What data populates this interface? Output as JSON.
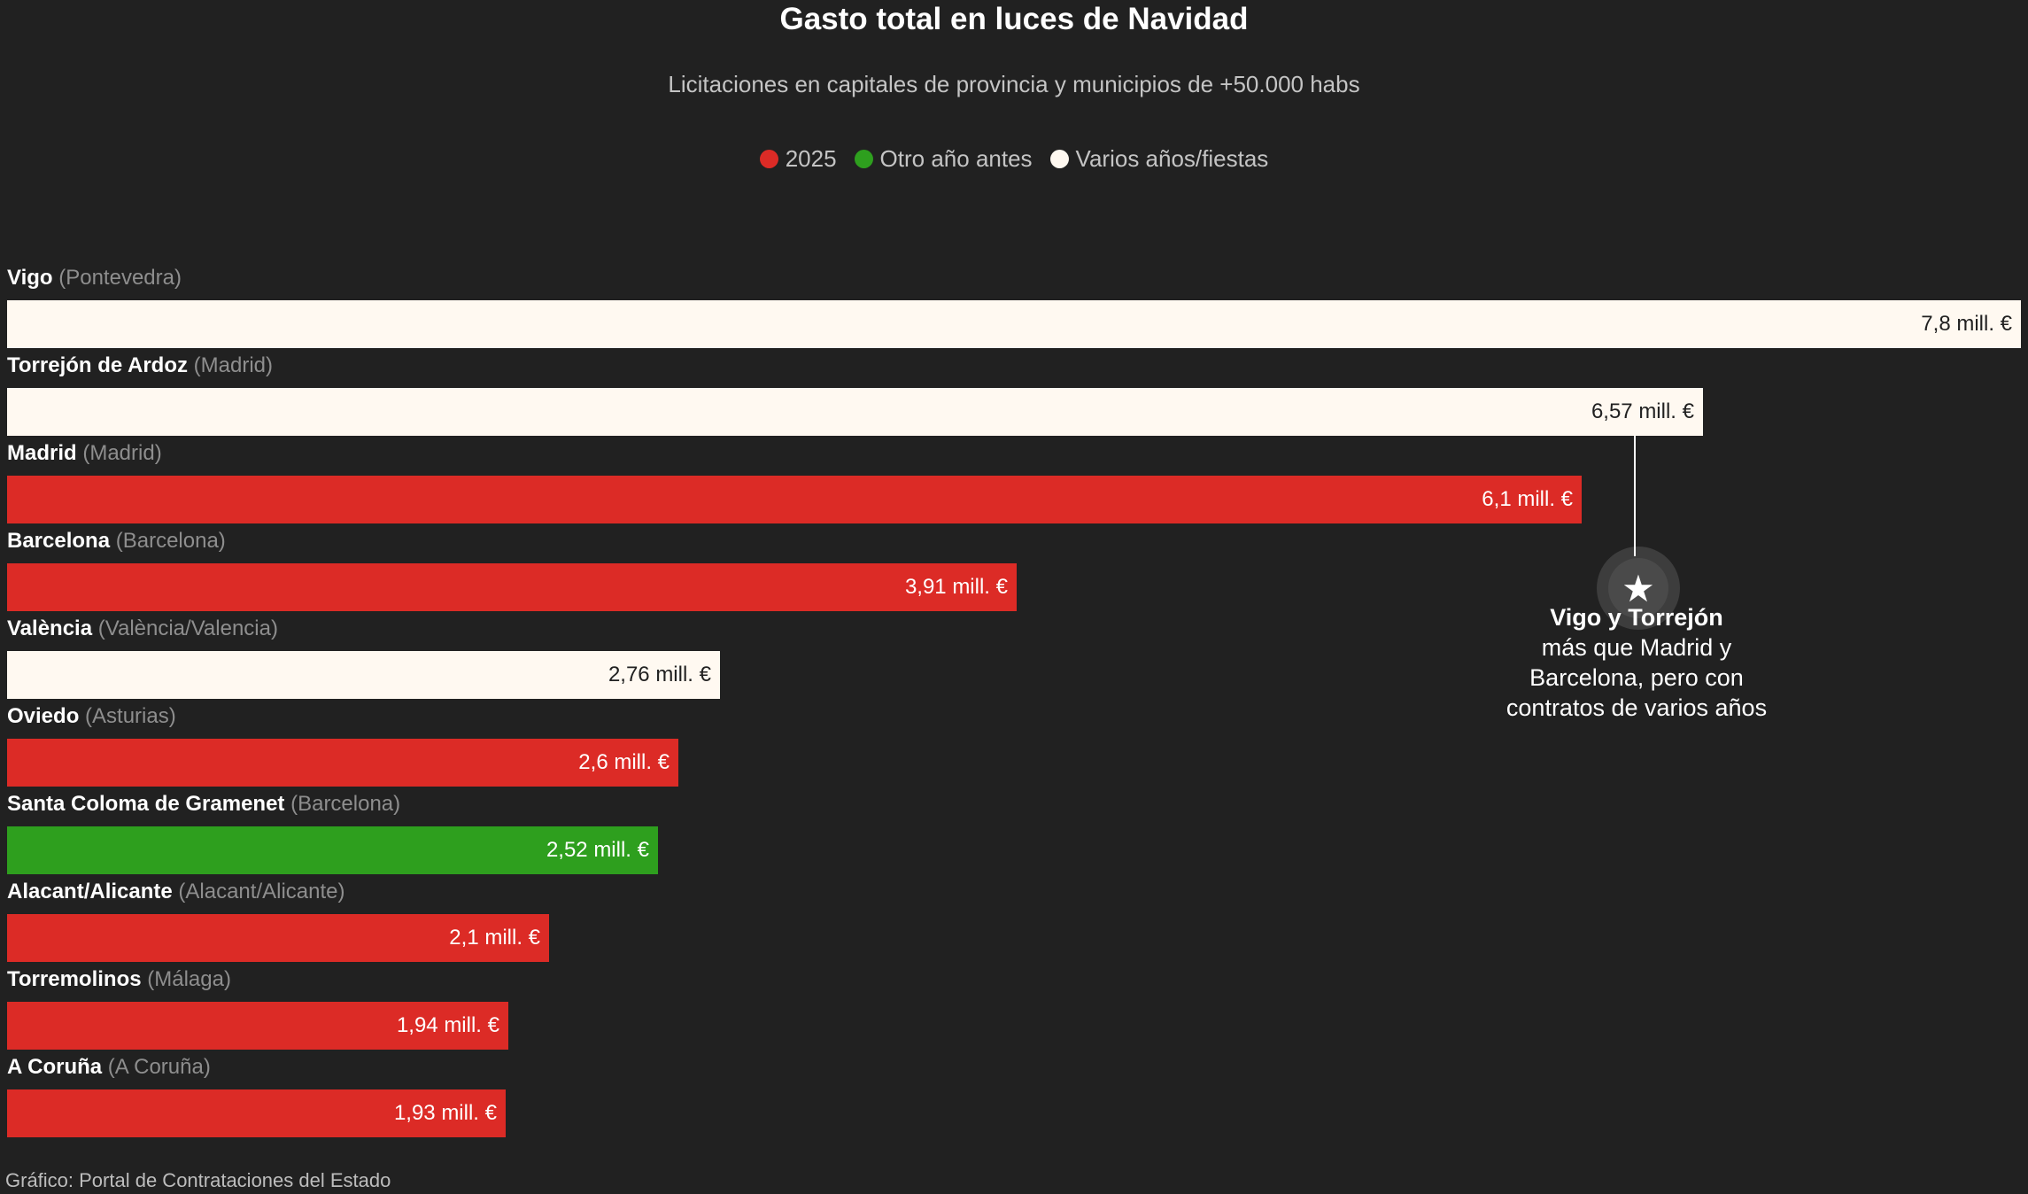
{
  "title": "Gasto total en luces de Navidad",
  "subtitle": "Licitaciones en capitales de provincia y municipios de +50.000 habs",
  "legend": [
    {
      "label": "2025",
      "color": "#dc2b26"
    },
    {
      "label": "Otro año antes",
      "color": "#2e9f1e"
    },
    {
      "label": "Varios años/fiestas",
      "color": "#fff9f1"
    }
  ],
  "annotation": {
    "icon": "star-icon",
    "bold": "Vigo y Torrejón",
    "text": "más que Madrid y Barcelona, pero con contratos de varios años"
  },
  "source": "Gráfico: Portal de Contrataciones del Estado",
  "chart_data": {
    "type": "bar",
    "orientation": "horizontal",
    "title": "Gasto total en luces de Navidad",
    "subtitle": "Licitaciones en capitales de provincia y municipios de +50.000 habs",
    "unit": "mill. €",
    "xlim": [
      0,
      7.8
    ],
    "categories": [
      {
        "name": "Vigo",
        "province": "(Pontevedra)",
        "value": 7.8,
        "label": "7,8 mill. €",
        "group": "Varios años/fiestas"
      },
      {
        "name": "Torrejón de Ardoz",
        "province": "(Madrid)",
        "value": 6.57,
        "label": "6,57 mill. €",
        "group": "Varios años/fiestas"
      },
      {
        "name": "Madrid",
        "province": "(Madrid)",
        "value": 6.1,
        "label": "6,1 mill. €",
        "group": "2025"
      },
      {
        "name": "Barcelona",
        "province": "(Barcelona)",
        "value": 3.91,
        "label": "3,91 mill. €",
        "group": "2025"
      },
      {
        "name": "València",
        "province": "(València/Valencia)",
        "value": 2.76,
        "label": "2,76 mill. €",
        "group": "Varios años/fiestas"
      },
      {
        "name": "Oviedo",
        "province": "(Asturias)",
        "value": 2.6,
        "label": "2,6 mill. €",
        "group": "2025"
      },
      {
        "name": "Santa Coloma de Gramenet",
        "province": "(Barcelona)",
        "value": 2.52,
        "label": "2,52 mill. €",
        "group": "Otro año antes"
      },
      {
        "name": "Alacant/Alicante",
        "province": "(Alacant/Alicante)",
        "value": 2.1,
        "label": "2,1 mill. €",
        "group": "2025"
      },
      {
        "name": "Torremolinos",
        "province": "(Málaga)",
        "value": 1.94,
        "label": "1,94 mill. €",
        "group": "2025"
      },
      {
        "name": "A Coruña",
        "province": "(A Coruña)",
        "value": 1.93,
        "label": "1,93 mill. €",
        "group": "2025"
      }
    ]
  }
}
